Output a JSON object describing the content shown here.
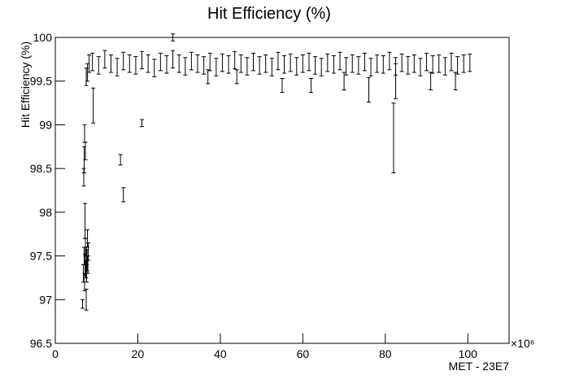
{
  "chart_data": {
    "type": "errorbar",
    "title": "Hit Efficiency (%)",
    "ylabel": "Hit Efficiency (%)",
    "xlabel": "MET - 23E7",
    "x_multiplier": "×10⁶",
    "color": "#000000",
    "xlim": [
      0,
      110
    ],
    "xticks": [
      0,
      20,
      40,
      60,
      80,
      100
    ],
    "ylim": [
      96.5,
      100
    ],
    "yticks": [
      96.5,
      97,
      97.5,
      98,
      98.5,
      99,
      99.5,
      100
    ],
    "x": [
      6.6,
      6.8,
      7.0,
      7.1,
      7.2,
      7.3,
      7.4,
      7.5,
      7.6,
      7.7,
      7.8,
      7.9,
      8.0,
      7.2,
      7.5,
      6.9,
      7.0,
      7.1,
      7.3,
      7.5,
      7.8,
      8.2,
      9.0,
      10.5,
      12.0,
      13.5,
      15.0,
      16.5,
      18.0,
      19.5,
      21.0,
      22.5,
      24.0,
      25.5,
      27.0,
      28.5,
      30.0,
      31.5,
      33.0,
      34.5,
      36.0,
      37.5,
      39.0,
      40.5,
      42.0,
      43.5,
      45.0,
      46.5,
      48.0,
      49.5,
      51.0,
      52.5,
      54.0,
      55.5,
      57.0,
      58.5,
      60.0,
      61.5,
      63.0,
      64.5,
      66.0,
      67.5,
      69.0,
      70.5,
      72.0,
      73.5,
      75.0,
      76.5,
      78.0,
      79.5,
      81.0,
      82.5,
      84.0,
      85.5,
      87.0,
      88.5,
      90.0,
      91.5,
      93.0,
      94.5,
      96.0,
      97.5,
      99.0,
      100.5,
      9.2,
      15.8,
      16.5,
      21.0,
      28.5,
      76.0,
      82.0,
      82.5,
      55.0,
      62.0,
      70.0,
      91.0,
      97.0,
      37.0,
      44.0
    ],
    "values": [
      96.95,
      97.3,
      97.5,
      97.2,
      97.4,
      97.6,
      97.35,
      97.5,
      97.3,
      97.45,
      97.7,
      97.4,
      97.55,
      97.9,
      97.0,
      98.4,
      98.6,
      98.9,
      98.7,
      99.55,
      99.6,
      99.7,
      99.72,
      99.68,
      99.75,
      99.7,
      99.66,
      99.73,
      99.7,
      99.68,
      99.74,
      99.7,
      99.65,
      99.72,
      99.69,
      99.75,
      99.7,
      99.67,
      99.73,
      99.7,
      99.68,
      99.72,
      99.66,
      99.71,
      99.69,
      99.74,
      99.7,
      99.67,
      99.72,
      99.68,
      99.7,
      99.66,
      99.73,
      99.69,
      99.71,
      99.67,
      99.7,
      99.72,
      99.68,
      99.66,
      99.71,
      99.69,
      99.73,
      99.67,
      99.7,
      99.68,
      99.72,
      99.66,
      99.7,
      99.69,
      99.73,
      99.67,
      99.71,
      99.68,
      99.7,
      99.66,
      99.72,
      99.69,
      99.7,
      99.67,
      99.72,
      99.68,
      99.7,
      99.71,
      99.22,
      98.6,
      98.2,
      99.02,
      100.0,
      99.4,
      98.85,
      99.5,
      99.45,
      99.45,
      99.5,
      99.5,
      99.5,
      99.55,
      99.55
    ],
    "errors": [
      0.05,
      0.1,
      0.1,
      0.1,
      0.12,
      0.1,
      0.1,
      0.1,
      0.1,
      0.12,
      0.1,
      0.1,
      0.1,
      0.2,
      0.12,
      0.1,
      0.15,
      0.1,
      0.1,
      0.1,
      0.1,
      0.1,
      0.1,
      0.1,
      0.1,
      0.1,
      0.1,
      0.1,
      0.1,
      0.1,
      0.1,
      0.1,
      0.1,
      0.1,
      0.1,
      0.1,
      0.1,
      0.1,
      0.1,
      0.1,
      0.1,
      0.1,
      0.1,
      0.1,
      0.1,
      0.1,
      0.1,
      0.1,
      0.1,
      0.1,
      0.1,
      0.1,
      0.1,
      0.1,
      0.1,
      0.1,
      0.1,
      0.1,
      0.1,
      0.1,
      0.1,
      0.1,
      0.1,
      0.1,
      0.1,
      0.1,
      0.1,
      0.1,
      0.1,
      0.1,
      0.1,
      0.1,
      0.1,
      0.1,
      0.1,
      0.1,
      0.1,
      0.1,
      0.1,
      0.1,
      0.1,
      0.1,
      0.1,
      0.1,
      0.2,
      0.06,
      0.08,
      0.04,
      0.04,
      0.14,
      0.4,
      0.2,
      0.08,
      0.08,
      0.1,
      0.1,
      0.1,
      0.08,
      0.08
    ]
  }
}
